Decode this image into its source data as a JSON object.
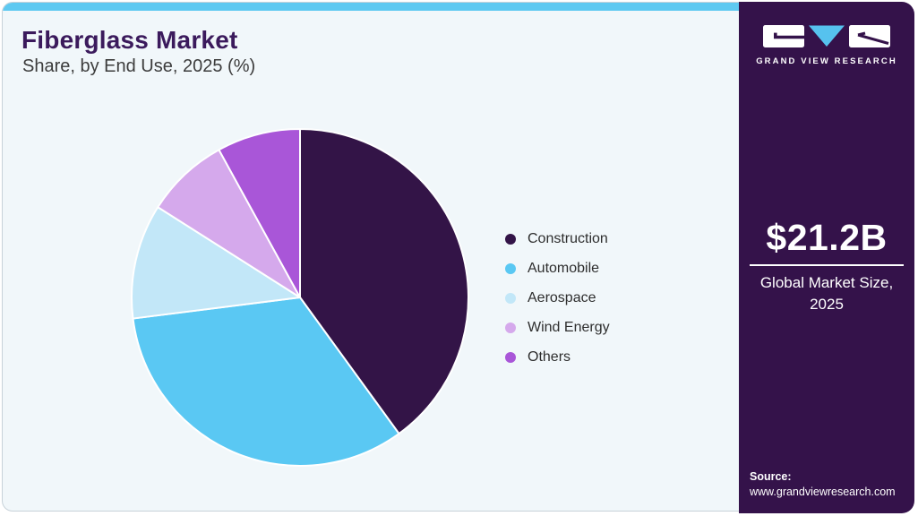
{
  "header": {
    "title": "Fiberglass Market",
    "subtitle": "Share, by End Use, 2025 (%)"
  },
  "chart_data": {
    "type": "pie",
    "title": "Fiberglass Market Share, by End Use, 2025 (%)",
    "categories": [
      "Construction",
      "Automobile",
      "Aerospace",
      "Wind Energy",
      "Others"
    ],
    "values": [
      40,
      33,
      11,
      8,
      8
    ],
    "unit": "%",
    "colors": [
      "#331447",
      "#5ac8f3",
      "#c2e7f8",
      "#d5a9ec",
      "#a956d8"
    ],
    "start_angle_deg": 0,
    "direction": "clockwise",
    "legend_position": "right",
    "slice_separator_color": "#ffffff",
    "data_labels": "none"
  },
  "sidebar": {
    "brand": "GRAND VIEW RESEARCH",
    "market_size_value": "$21.2B",
    "market_size_label_line1": "Global Market Size,",
    "market_size_label_line2": "2025",
    "source_label": "Source:",
    "source_url": "www.grandviewresearch.com"
  },
  "theme": {
    "card_bg": "#f1f7fa",
    "card_border": "#c8d2d9",
    "accent_bar": "#5ec9f1",
    "sidebar_bg": "#34124a",
    "title_color": "#3b1a5c",
    "subtitle_color": "#3c3c3c",
    "legend_text": "#2e2e2e",
    "logo_triangle": "#56c2ee",
    "logo_glyph": "#34124a"
  }
}
